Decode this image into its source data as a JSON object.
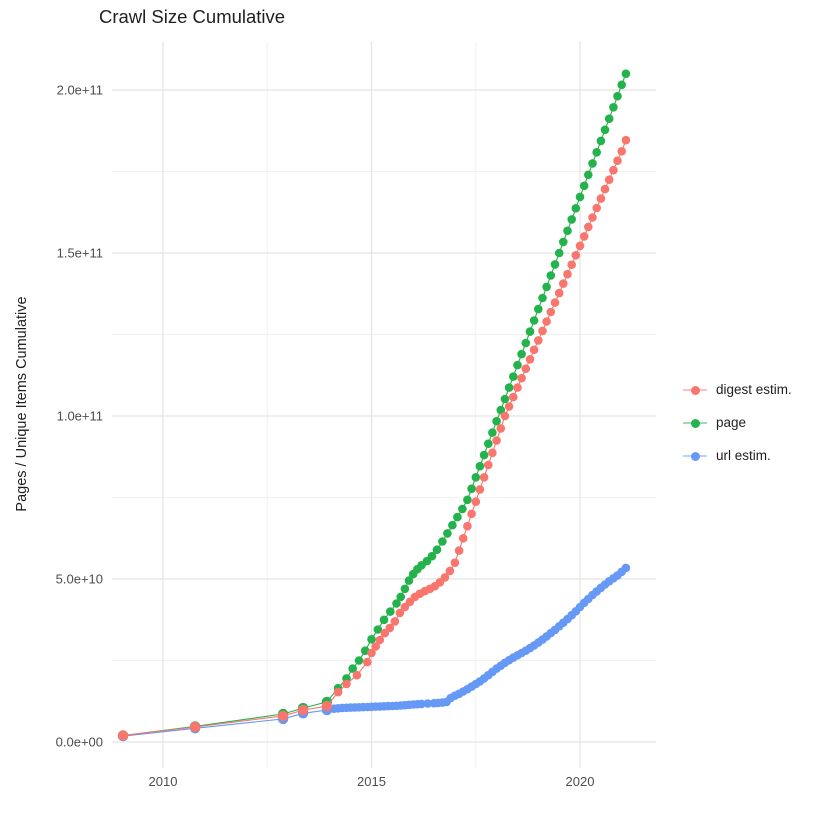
{
  "chart": {
    "title": "Crawl Size Cumulative",
    "ylabel": "Pages / Unique Items Cumulative",
    "xlabel": ""
  },
  "chart_data": {
    "type": "scatter",
    "title": "Crawl Size Cumulative",
    "ylabel": "Pages / Unique Items Cumulative",
    "xlabel": "",
    "grid": true,
    "legend_position": "right",
    "x_axis": {
      "tick_values": [
        2010,
        2015,
        2020
      ],
      "tick_labels": [
        "2010",
        "2015",
        "2020"
      ],
      "minor_tick_values": [
        2012.5,
        2017.5
      ],
      "range": [
        2008.8,
        2021.8
      ]
    },
    "y_axis": {
      "tick_values_e9": [
        0,
        50,
        100,
        150,
        200
      ],
      "tick_labels": [
        "0.0e+00",
        "5.0e+10",
        "1.0e+11",
        "1.5e+11",
        "2.0e+11"
      ],
      "minor_values_e9": [
        25,
        75,
        125,
        175
      ],
      "range_e9": [
        -6,
        214
      ]
    },
    "value_unit": "1e9 pages / unique items",
    "draw_order": [
      2,
      1,
      0
    ],
    "series": [
      {
        "name": "digest estim.",
        "color": "#F8766D",
        "points_year_value_e9": [
          [
            2009.04,
            2
          ],
          [
            2010.77,
            4.6
          ],
          [
            2012.88,
            8
          ],
          [
            2013.36,
            9.8
          ],
          [
            2013.93,
            11
          ],
          [
            2014.2,
            15.3
          ],
          [
            2014.4,
            17.8
          ],
          [
            2014.65,
            20.5
          ],
          [
            2014.9,
            24.5
          ],
          [
            2015.0,
            27.3
          ],
          [
            2015.1,
            29.3
          ],
          [
            2015.2,
            31.3
          ],
          [
            2015.32,
            33.4
          ],
          [
            2015.44,
            35
          ],
          [
            2015.56,
            37
          ],
          [
            2015.68,
            39.6
          ],
          [
            2015.8,
            41.4
          ],
          [
            2015.92,
            43
          ],
          [
            2016.04,
            44.5
          ],
          [
            2016.16,
            45.5
          ],
          [
            2016.28,
            46.3
          ],
          [
            2016.4,
            47
          ],
          [
            2016.52,
            47.8
          ],
          [
            2016.64,
            49
          ],
          [
            2016.76,
            50.5
          ],
          [
            2016.88,
            52.5
          ],
          [
            2017.0,
            55
          ],
          [
            2017.1,
            58.7
          ],
          [
            2017.2,
            62.5
          ],
          [
            2017.3,
            66.2
          ],
          [
            2017.4,
            70
          ],
          [
            2017.5,
            73.7
          ],
          [
            2017.6,
            77.5
          ],
          [
            2017.7,
            81.2
          ],
          [
            2017.8,
            85
          ],
          [
            2017.9,
            88.7
          ],
          [
            2018.0,
            92.5
          ],
          [
            2018.1,
            96.2
          ],
          [
            2018.2,
            100
          ],
          [
            2018.3,
            102.9
          ],
          [
            2018.4,
            105.8
          ],
          [
            2018.5,
            108.7
          ],
          [
            2018.6,
            111.6
          ],
          [
            2018.7,
            114.5
          ],
          [
            2018.8,
            117.4
          ],
          [
            2018.9,
            120.3
          ],
          [
            2019.0,
            123.2
          ],
          [
            2019.1,
            126.1
          ],
          [
            2019.2,
            129
          ],
          [
            2019.3,
            131.9
          ],
          [
            2019.4,
            134.8
          ],
          [
            2019.5,
            137.7
          ],
          [
            2019.6,
            140.6
          ],
          [
            2019.7,
            143.5
          ],
          [
            2019.8,
            146.4
          ],
          [
            2019.9,
            149.3
          ],
          [
            2020.0,
            152.2
          ],
          [
            2020.1,
            155.1
          ],
          [
            2020.2,
            158
          ],
          [
            2020.3,
            160.9
          ],
          [
            2020.4,
            163.8
          ],
          [
            2020.5,
            166.7
          ],
          [
            2020.6,
            169.6
          ],
          [
            2020.7,
            172.5
          ],
          [
            2020.8,
            175.4
          ],
          [
            2020.9,
            178.3
          ],
          [
            2021.0,
            181.2
          ],
          [
            2021.1,
            184.6
          ]
        ]
      },
      {
        "name": "page",
        "color": "#23B24C",
        "points_year_value_e9": [
          [
            2009.04,
            2
          ],
          [
            2010.77,
            4.8
          ],
          [
            2012.88,
            8.6
          ],
          [
            2013.36,
            10.4
          ],
          [
            2013.93,
            12.3
          ],
          [
            2014.2,
            16.5
          ],
          [
            2014.4,
            19.5
          ],
          [
            2014.55,
            22.5
          ],
          [
            2014.7,
            25
          ],
          [
            2014.85,
            28
          ],
          [
            2015.0,
            31.5
          ],
          [
            2015.15,
            34.5
          ],
          [
            2015.3,
            37.5
          ],
          [
            2015.45,
            40
          ],
          [
            2015.6,
            42.5
          ],
          [
            2015.7,
            44.5
          ],
          [
            2015.8,
            47
          ],
          [
            2015.9,
            49.5
          ],
          [
            2016.0,
            51.5
          ],
          [
            2016.1,
            53
          ],
          [
            2016.2,
            54.2
          ],
          [
            2016.33,
            55.5
          ],
          [
            2016.45,
            57
          ],
          [
            2016.57,
            59
          ],
          [
            2016.7,
            61.5
          ],
          [
            2016.82,
            64
          ],
          [
            2016.94,
            66.5
          ],
          [
            2017.06,
            69
          ],
          [
            2017.18,
            71.5
          ],
          [
            2017.3,
            74.3
          ],
          [
            2017.4,
            77.7
          ],
          [
            2017.5,
            81.2
          ],
          [
            2017.6,
            84.6
          ],
          [
            2017.7,
            88
          ],
          [
            2017.8,
            91.5
          ],
          [
            2017.9,
            94.9
          ],
          [
            2018.0,
            98.4
          ],
          [
            2018.1,
            101.8
          ],
          [
            2018.2,
            105.2
          ],
          [
            2018.3,
            108.7
          ],
          [
            2018.4,
            112.1
          ],
          [
            2018.5,
            115.6
          ],
          [
            2018.6,
            119
          ],
          [
            2018.7,
            122.4
          ],
          [
            2018.8,
            125.9
          ],
          [
            2018.9,
            129.3
          ],
          [
            2019.0,
            132.8
          ],
          [
            2019.1,
            136.2
          ],
          [
            2019.2,
            139.6
          ],
          [
            2019.3,
            143.1
          ],
          [
            2019.4,
            146.5
          ],
          [
            2019.5,
            150
          ],
          [
            2019.6,
            153.4
          ],
          [
            2019.7,
            156.8
          ],
          [
            2019.8,
            160.3
          ],
          [
            2019.9,
            163.7
          ],
          [
            2020.0,
            167.2
          ],
          [
            2020.1,
            170.6
          ],
          [
            2020.2,
            174
          ],
          [
            2020.3,
            177.5
          ],
          [
            2020.4,
            180.9
          ],
          [
            2020.5,
            184.4
          ],
          [
            2020.6,
            187.8
          ],
          [
            2020.7,
            191.2
          ],
          [
            2020.8,
            194.7
          ],
          [
            2020.9,
            198.1
          ],
          [
            2021.0,
            201.6
          ],
          [
            2021.1,
            205
          ]
        ]
      },
      {
        "name": "url estim.",
        "color": "#6699F5",
        "points_year_value_e9": [
          [
            2009.04,
            1.8
          ],
          [
            2010.77,
            4.2
          ],
          [
            2012.88,
            7.1
          ],
          [
            2013.36,
            8.8
          ],
          [
            2013.93,
            9.8
          ],
          [
            2014.1,
            10.2
          ],
          [
            2014.2,
            10.35
          ],
          [
            2014.3,
            10.45
          ],
          [
            2014.4,
            10.5
          ],
          [
            2014.5,
            10.55
          ],
          [
            2014.6,
            10.6
          ],
          [
            2014.7,
            10.65
          ],
          [
            2014.8,
            10.7
          ],
          [
            2014.9,
            10.75
          ],
          [
            2015.0,
            10.8
          ],
          [
            2015.1,
            10.85
          ],
          [
            2015.2,
            10.9
          ],
          [
            2015.3,
            10.95
          ],
          [
            2015.4,
            11
          ],
          [
            2015.5,
            11.05
          ],
          [
            2015.6,
            11.1
          ],
          [
            2015.7,
            11.2
          ],
          [
            2015.8,
            11.3
          ],
          [
            2015.9,
            11.4
          ],
          [
            2016.0,
            11.5
          ],
          [
            2016.1,
            11.6
          ],
          [
            2016.2,
            11.7
          ],
          [
            2016.35,
            11.8
          ],
          [
            2016.5,
            11.9
          ],
          [
            2016.6,
            12
          ],
          [
            2016.7,
            12.1
          ],
          [
            2016.8,
            12.3
          ],
          [
            2016.9,
            13.5
          ],
          [
            2017.0,
            14.2
          ],
          [
            2017.1,
            14.8
          ],
          [
            2017.2,
            15.5
          ],
          [
            2017.3,
            16.2
          ],
          [
            2017.4,
            17
          ],
          [
            2017.5,
            17.8
          ],
          [
            2017.6,
            18.6
          ],
          [
            2017.7,
            19.5
          ],
          [
            2017.8,
            20.5
          ],
          [
            2017.9,
            21.5
          ],
          [
            2018.0,
            22.5
          ],
          [
            2018.1,
            23.4
          ],
          [
            2018.2,
            24.3
          ],
          [
            2018.3,
            25.1
          ],
          [
            2018.4,
            25.9
          ],
          [
            2018.5,
            26.6
          ],
          [
            2018.6,
            27.3
          ],
          [
            2018.7,
            28
          ],
          [
            2018.8,
            28.8
          ],
          [
            2018.9,
            29.6
          ],
          [
            2019.0,
            30.5
          ],
          [
            2019.1,
            31.4
          ],
          [
            2019.2,
            32.4
          ],
          [
            2019.3,
            33.4
          ],
          [
            2019.4,
            34.4
          ],
          [
            2019.5,
            35.5
          ],
          [
            2019.6,
            36.6
          ],
          [
            2019.7,
            37.7
          ],
          [
            2019.8,
            38.9
          ],
          [
            2019.9,
            40.1
          ],
          [
            2020.0,
            41.4
          ],
          [
            2020.1,
            42.7
          ],
          [
            2020.2,
            43.9
          ],
          [
            2020.3,
            45.1
          ],
          [
            2020.4,
            46.2
          ],
          [
            2020.5,
            47.3
          ],
          [
            2020.6,
            48.3
          ],
          [
            2020.7,
            49.3
          ],
          [
            2020.8,
            50.2
          ],
          [
            2020.9,
            51.1
          ],
          [
            2021.0,
            52.2
          ],
          [
            2021.1,
            53.4
          ]
        ]
      }
    ],
    "colors": {
      "grid_major": "#E3E3E3",
      "grid_minor": "#F0F0F0",
      "tick_text": "#4D4D4D",
      "text": "#1F1F1F",
      "background": "#FFFFFF"
    }
  }
}
